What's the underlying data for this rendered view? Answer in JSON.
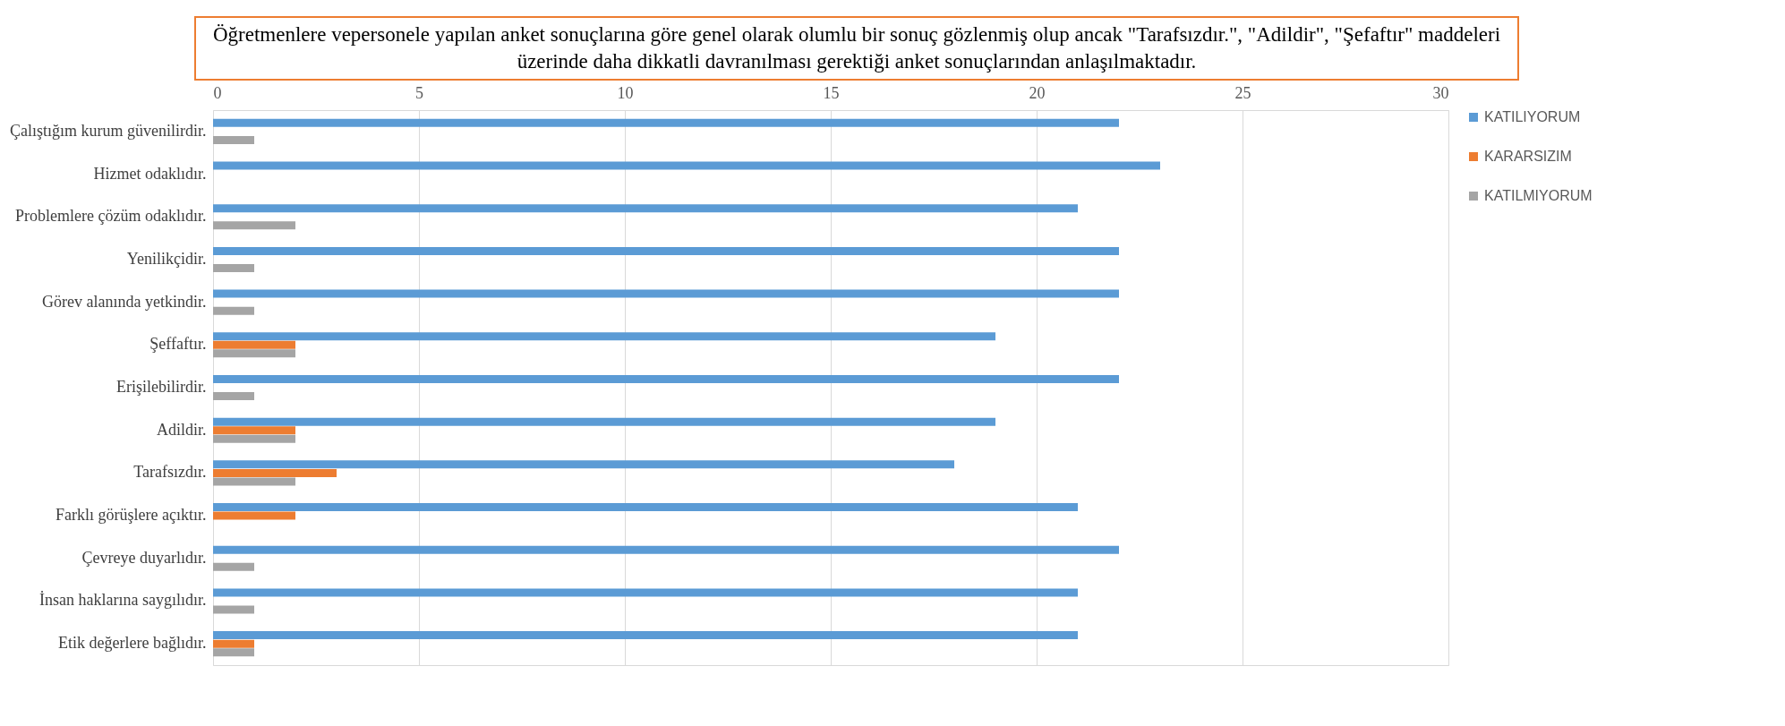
{
  "chart_data": {
    "type": "bar",
    "orientation": "horizontal",
    "title": "Öğretmenlere vepersonele yapılan anket sonuçlarına göre genel olarak olumlu bir sonuç gözlenmiş olup ancak \"Tarafsızdır.\", \"Adildir\", \"Şefaftır\" maddeleri üzerinde daha dikkatli davranılması gerektiği anket sonuçlarından anlaşılmaktadır.",
    "categories": [
      "Çalıştığım kurum güvenilirdir.",
      "Hizmet odaklıdır.",
      "Problemlere çözüm odaklıdır.",
      "Yenilikçidir.",
      "Görev alanında yetkindir.",
      "Şeffaftır.",
      "Erişilebilirdir.",
      "Adildir.",
      "Tarafsızdır.",
      "Farklı görüşlere açıktır.",
      "Çevreye duyarlıdır.",
      "İnsan haklarına saygılıdır.",
      "Etik değerlere bağlıdır."
    ],
    "series": [
      {
        "name": "KATILIYORUM",
        "color": "#5b9bd5",
        "values": [
          22,
          23,
          21,
          22,
          22,
          19,
          22,
          19,
          18,
          21,
          22,
          21,
          21
        ]
      },
      {
        "name": "KARARSIZIM",
        "color": "#ed7d31",
        "values": [
          null,
          null,
          null,
          null,
          null,
          2,
          null,
          2,
          3,
          2,
          null,
          null,
          1
        ]
      },
      {
        "name": "KATILMIYORUM",
        "color": "#a5a5a5",
        "values": [
          1,
          null,
          2,
          1,
          1,
          2,
          1,
          2,
          2,
          null,
          1,
          1,
          1
        ]
      }
    ],
    "xlim": [
      0,
      30
    ],
    "xticks": [
      0,
      5,
      10,
      15,
      20,
      25,
      30
    ],
    "grid": "x",
    "legend": "right"
  }
}
